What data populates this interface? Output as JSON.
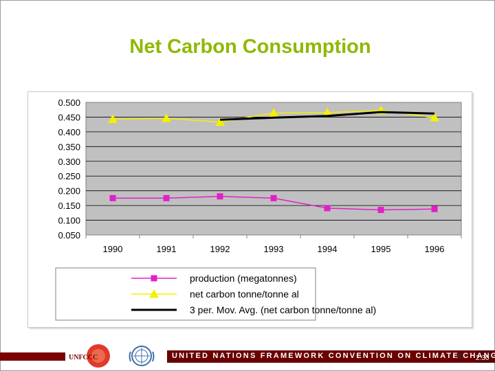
{
  "slide": {
    "title": "Net Carbon Consumption",
    "footer_text": "UNITED NATIONS FRAMEWORK CONVENTION ON CLIMATE CHANGE",
    "logo_text": "UNFCCC",
    "slide_number": "30",
    "page_number": "2.30"
  },
  "chart_data": {
    "type": "line",
    "title": "",
    "xlabel": "",
    "ylabel": "",
    "categories": [
      "1990",
      "1991",
      "1992",
      "1993",
      "1994",
      "1995",
      "1996"
    ],
    "y_ticks": [
      "0.500",
      "0.450",
      "0.400",
      "0.350",
      "0.300",
      "0.250",
      "0.200",
      "0.150",
      "0.100",
      "0.050"
    ],
    "ylim": [
      0.05,
      0.5
    ],
    "grid": true,
    "legend_position": "bottom",
    "series": [
      {
        "name": "production (megatonnes)",
        "color": "#e020c8",
        "marker": "square",
        "values": [
          0.175,
          0.175,
          0.181,
          0.175,
          0.141,
          0.135,
          0.138
        ]
      },
      {
        "name": "net carbon tonne/tonne al",
        "color": "#f4f000",
        "marker": "triangle",
        "values": [
          0.443,
          0.446,
          0.433,
          0.464,
          0.465,
          0.473,
          0.448
        ]
      },
      {
        "name": "3 per. Mov. Avg. (net carbon tonne/tonne al)",
        "color": "#000000",
        "marker": "none",
        "values": [
          null,
          null,
          0.441,
          0.448,
          0.454,
          0.467,
          0.462
        ]
      }
    ]
  }
}
